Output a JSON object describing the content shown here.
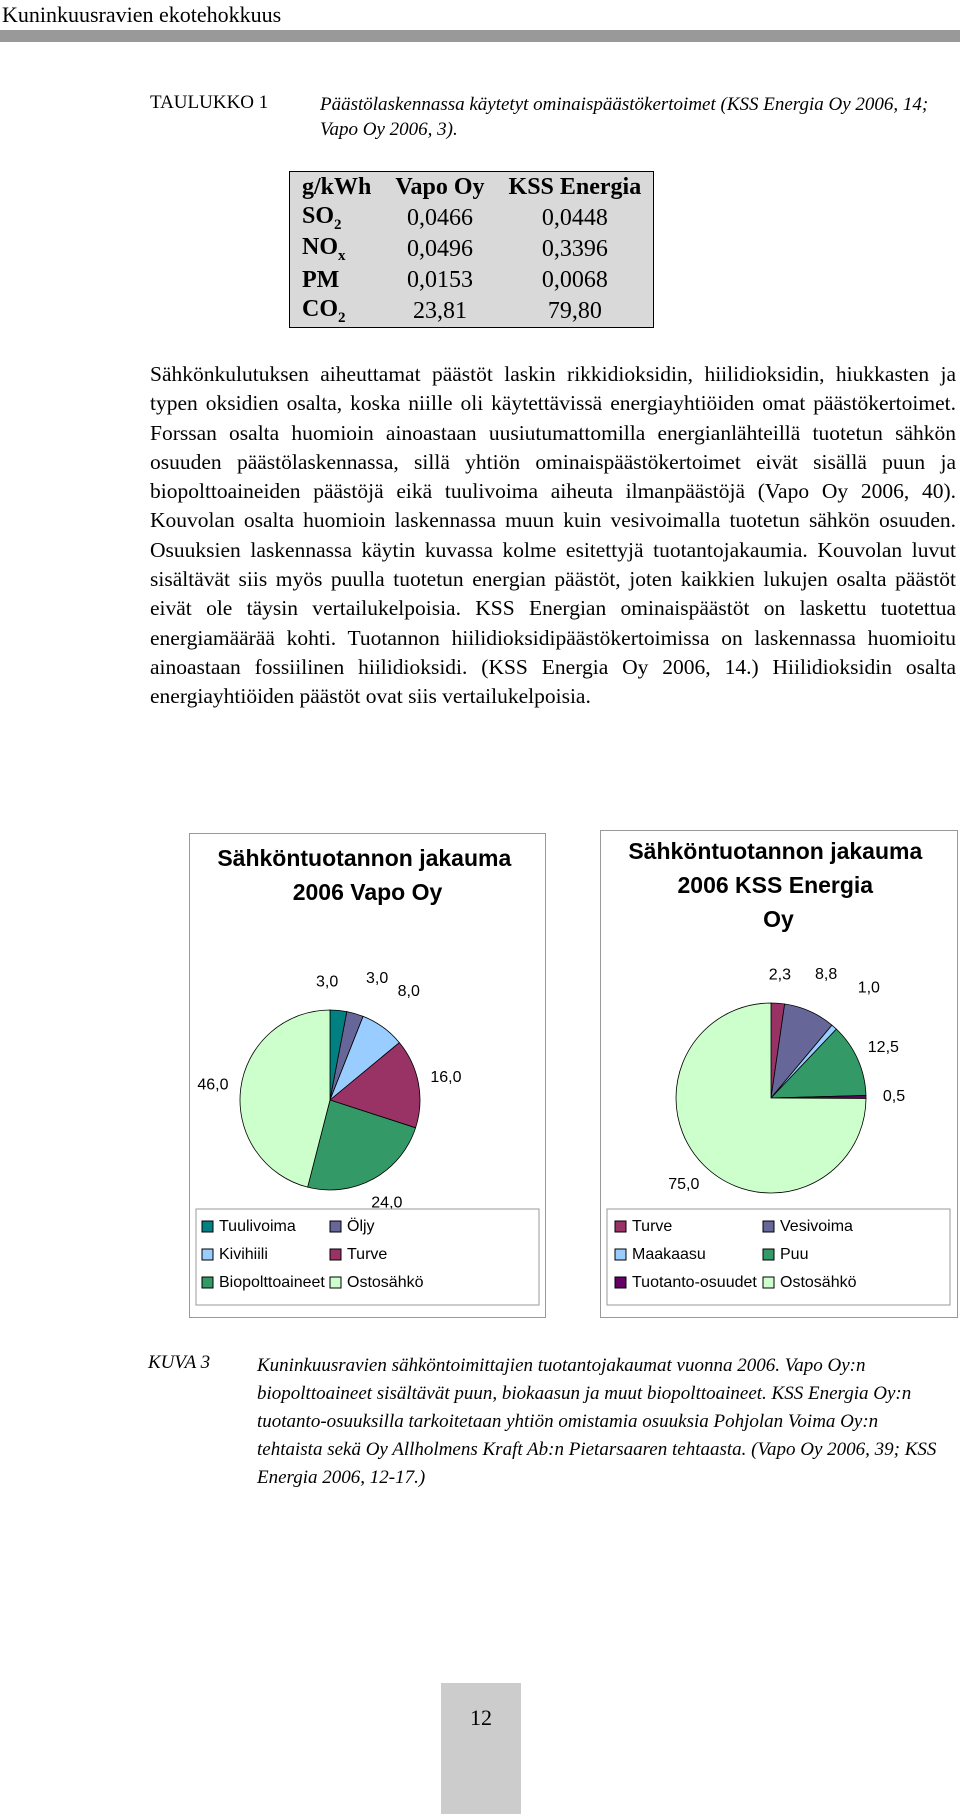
{
  "header": {
    "title": "Kuninkuusravien ekotehokkuus"
  },
  "table": {
    "label": "TAULUKKO 1",
    "caption": "Päästölaskennassa käytetyt ominaispäästökertoimet (KSS Energia Oy 2006, 14; Vapo Oy 2006, 3).",
    "columns": [
      "g/kWh",
      "Vapo Oy",
      "KSS Energia"
    ],
    "rows": [
      [
        {
          "base": "SO",
          "sub": "2"
        },
        "0,0466",
        "0,0448"
      ],
      [
        {
          "base": "NO",
          "sub": "x"
        },
        "0,0496",
        "0,3396"
      ],
      [
        {
          "base": "PM",
          "sub": ""
        },
        "0,0153",
        "0,0068"
      ],
      [
        {
          "base": "CO",
          "sub": "2"
        },
        "23,81",
        "79,80"
      ]
    ]
  },
  "paragraph": "Sähkönkulutuksen aiheuttamat päästöt laskin rikkidioksidin, hiilidioksidin, hiukkasten ja typen oksidien osalta, koska niille oli käytettävissä energiayhtiöiden omat päästökertoimet. Forssan osalta huomioin ainoastaan uusiutumattomilla energianlähteillä tuotetun sähkön osuuden päästölaskennassa, sillä yhtiön ominaispäästökertoimet eivät sisällä puun ja biopolttoaineiden päästöjä eikä tuulivoima aiheuta ilmanpäästöjä (Vapo Oy 2006, 40). Kouvolan osalta huomioin laskennassa muun kuin vesivoimalla tuotetun sähkön osuuden. Osuuksien laskennassa käytin kuvassa kolme esitettyjä tuotantojakaumia. Kouvolan luvut sisältävät siis myös puulla tuotetun energian päästöt, joten kaikkien lukujen osalta päästöt eivät ole täysin vertailukelpoisia. KSS Energian ominaispäästöt on laskettu tuotettua energiamäärää kohti. Tuotannon hiilidioksidipäästökertoimissa on laskennassa huomioitu ainoastaan fossiilinen hiilidioksidi. (KSS Energia Oy 2006, 14.) Hiilidioksidin osalta energiayhtiöiden päästöt ovat siis vertailukelpoisia.",
  "charts": [
    {
      "type": "pie",
      "title": "Sähköntuotannon jakauma 2006 Vapo Oy",
      "categories": [
        "Tuulivoima",
        "Öljy",
        "Kivihiili",
        "Turve",
        "Biopolttoaineet",
        "Ostosähkö"
      ],
      "values": [
        3.0,
        3.0,
        8.0,
        16.0,
        24.0,
        46.0
      ],
      "value_labels": [
        "3,0",
        "3,0",
        "8,0",
        "16,0",
        "24,0",
        "46,0"
      ],
      "colors": [
        "#008080",
        "#666699",
        "#99ccff",
        "#993366",
        "#339966",
        "#ccffcc"
      ]
    },
    {
      "type": "pie",
      "title": "Sähköntuotannon jakauma 2006 KSS Energia Oy",
      "categories": [
        "Turve",
        "Vesivoima",
        "Maakaasu",
        "Puu",
        "Tuotanto-osuudet",
        "Ostosähkö"
      ],
      "values": [
        2.3,
        8.8,
        1.0,
        12.5,
        0.5,
        75.0
      ],
      "value_labels": [
        "2,3",
        "8,8",
        "1,0",
        "12,5",
        "0,5",
        "75,0"
      ],
      "colors": [
        "#993366",
        "#666699",
        "#99ccff",
        "#339966",
        "#660066",
        "#ccffcc"
      ]
    }
  ],
  "figure": {
    "label": "KUVA 3",
    "caption": "Kuninkuusravien sähköntoimittajien tuotantojakaumat vuonna 2006. Vapo Oy:n biopolttoaineet sisältävät puun, biokaasun ja muut biopolttoaineet. KSS Energia Oy:n tuotanto-osuuksilla tarkoitetaan yhtiön omistamia osuuksia Pohjolan Voima Oy:n tehtaista sekä Oy Allholmens Kraft Ab:n Pietarsaaren tehtaasta. (Vapo Oy 2006, 39; KSS Energia 2006, 12-17.)"
  },
  "page_number": "12"
}
